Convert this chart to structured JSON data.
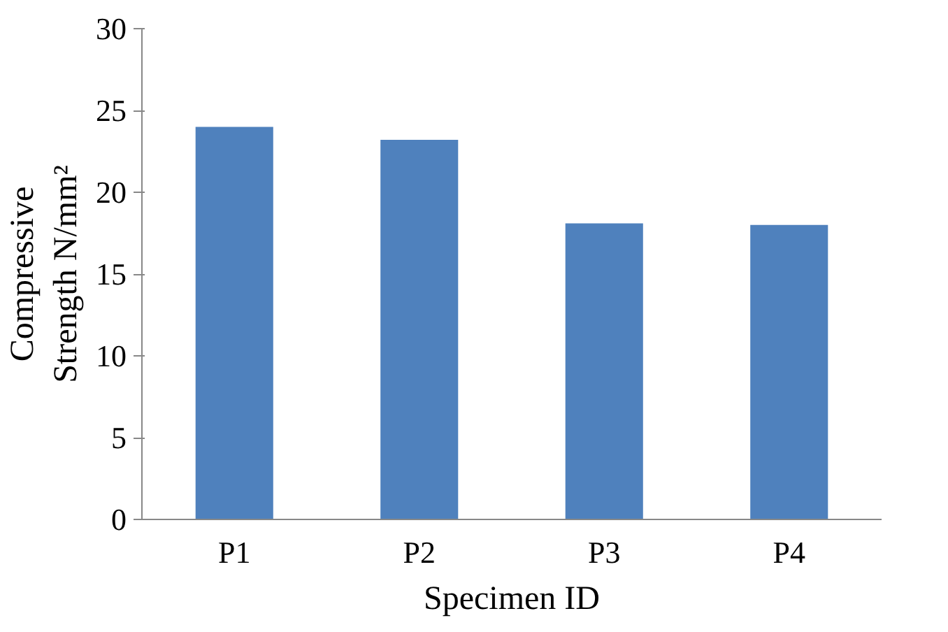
{
  "chart_data": {
    "type": "bar",
    "xlabel": "Specimen ID",
    "ylabel": "Compressive Strength N/mm²",
    "categories": [
      "P1",
      "P2",
      "P3",
      "P4"
    ],
    "values": [
      24,
      23.2,
      18.1,
      18
    ],
    "color": "#4f81bd",
    "ylim": [
      0,
      30
    ],
    "yticks": [
      0,
      5,
      10,
      15,
      20,
      25,
      30
    ],
    "grid": false
  }
}
